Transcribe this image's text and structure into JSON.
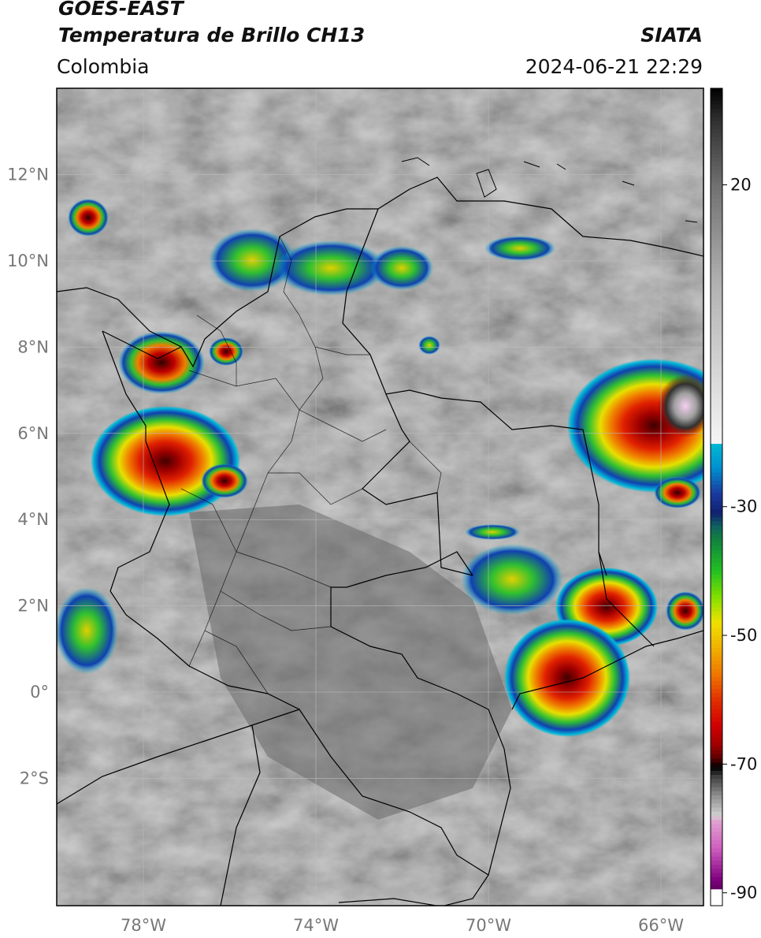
{
  "header": {
    "satellite": "GOES-EAST",
    "product": "Temperatura de Brillo CH13",
    "region": "Colombia",
    "source": "SIATA",
    "datetime": "2024-06-21 22:29"
  },
  "map": {
    "lon_range": [
      -80,
      -65
    ],
    "lat_range": [
      -5,
      14
    ],
    "lat_ticks": [
      {
        "value": 12,
        "label": "12°N"
      },
      {
        "value": 10,
        "label": "10°N"
      },
      {
        "value": 8,
        "label": "8°N"
      },
      {
        "value": 6,
        "label": "6°N"
      },
      {
        "value": 4,
        "label": "4°N"
      },
      {
        "value": 2,
        "label": "2°N"
      },
      {
        "value": 0,
        "label": "0°"
      },
      {
        "value": -2,
        "label": "2°S"
      }
    ],
    "lon_ticks": [
      {
        "value": -78,
        "label": "78°W"
      },
      {
        "value": -74,
        "label": "74°W"
      },
      {
        "value": -70,
        "label": "70°W"
      },
      {
        "value": -66,
        "label": "66°W"
      }
    ],
    "grid": true
  },
  "colorbar": {
    "range": [
      -92,
      35
    ],
    "ticks": [
      {
        "value": 20,
        "label": "20"
      },
      {
        "value": -30,
        "label": "-30"
      },
      {
        "value": -50,
        "label": "-50"
      },
      {
        "value": -70,
        "label": "-70"
      },
      {
        "value": -90,
        "label": "-90"
      }
    ],
    "colors": {
      "warm_gray": "#a0a0a0",
      "cyan": "#00bcd4",
      "blue": "#1a3aa0",
      "green": "#22c022",
      "yellow": "#f0e000",
      "orange": "#f07800",
      "red": "#d00000",
      "dark_red": "#600000",
      "black": "#000000",
      "magenta": "#d060c0",
      "purple": "#800080"
    }
  }
}
